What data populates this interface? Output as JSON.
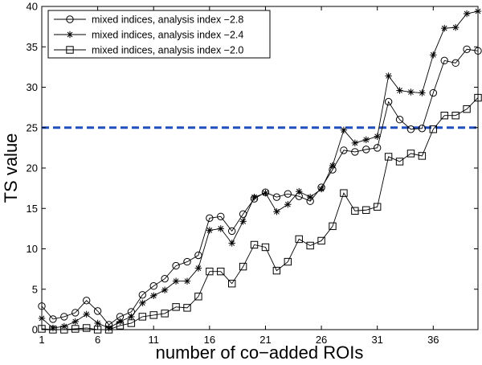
{
  "chart_data": {
    "type": "line",
    "xlabel": "number of co−added ROIs",
    "ylabel": "TS value",
    "xlim": [
      1,
      40
    ],
    "ylim": [
      0,
      40
    ],
    "x_ticks": [
      1,
      6,
      11,
      16,
      21,
      26,
      31,
      36
    ],
    "y_ticks": [
      0,
      5,
      10,
      15,
      20,
      25,
      30,
      35,
      40
    ],
    "grid": false,
    "legend_position": "top-left",
    "threshold_line": {
      "y": 25,
      "color": "#1f4fbf",
      "style": "dashed"
    },
    "x": [
      1,
      2,
      3,
      4,
      5,
      6,
      7,
      8,
      9,
      10,
      11,
      12,
      13,
      14,
      15,
      16,
      17,
      18,
      19,
      20,
      21,
      22,
      23,
      24,
      25,
      26,
      27,
      28,
      29,
      30,
      31,
      32,
      33,
      34,
      35,
      36,
      37,
      38,
      39,
      40
    ],
    "series": [
      {
        "name": "mixed indices, analysis index −2.8",
        "marker": "circle",
        "values": [
          2.9,
          1.3,
          1.6,
          2.1,
          3.6,
          2.3,
          0.6,
          1.6,
          2.2,
          4.3,
          5.4,
          6.3,
          7.9,
          8.4,
          9.2,
          13.8,
          14.0,
          12.2,
          14.3,
          16.2,
          17.0,
          16.4,
          16.8,
          16.5,
          15.9,
          17.6,
          19.8,
          22.2,
          22.0,
          22.3,
          22.5,
          28.2,
          26.0,
          24.8,
          24.9,
          29.3,
          33.3,
          33.0,
          34.7,
          34.5
        ]
      },
      {
        "name": "mixed indices, analysis index −2.4",
        "marker": "asterisk",
        "values": [
          1.4,
          0.2,
          0.4,
          1.0,
          1.9,
          0.8,
          0.2,
          1.0,
          1.6,
          3.3,
          4.2,
          4.9,
          6.0,
          6.0,
          7.6,
          12.3,
          12.5,
          10.7,
          13.4,
          16.4,
          16.9,
          14.6,
          15.5,
          17.1,
          16.4,
          17.4,
          20.3,
          24.7,
          23.1,
          23.5,
          23.9,
          31.4,
          29.6,
          29.4,
          29.3,
          34.0,
          37.3,
          37.4,
          39.1,
          39.4
        ]
      },
      {
        "name": "mixed indices, analysis index −2.0",
        "marker": "square",
        "values": [
          0.1,
          0.0,
          0.0,
          0.1,
          0.2,
          0.0,
          0.0,
          0.5,
          0.8,
          1.6,
          1.8,
          2.0,
          2.8,
          2.7,
          4.1,
          7.2,
          7.2,
          5.7,
          7.8,
          10.5,
          10.2,
          7.3,
          8.4,
          11.2,
          10.4,
          11.0,
          12.8,
          16.9,
          14.7,
          14.8,
          15.2,
          21.4,
          20.8,
          21.8,
          21.5,
          24.8,
          26.5,
          26.5,
          27.3,
          28.7
        ]
      }
    ]
  }
}
